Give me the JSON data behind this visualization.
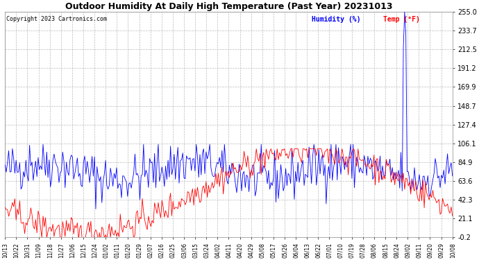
{
  "title": "Outdoor Humidity At Daily High Temperature (Past Year) 20231013",
  "copyright": "Copyright 2023 Cartronics.com",
  "legend_humidity": "Humidity (%)",
  "legend_temp": "Temp (°F)",
  "humidity_color": "#0000ff",
  "temp_color": "#ff0000",
  "background_color": "#ffffff",
  "plot_bg_color": "#ffffff",
  "grid_color": "#aaaaaa",
  "text_color": "#000000",
  "title_color": "#000000",
  "ymin": -0.2,
  "ymax": 255.0,
  "yticks": [
    255.0,
    233.7,
    212.5,
    191.2,
    169.9,
    148.7,
    127.4,
    106.1,
    84.9,
    63.6,
    42.3,
    21.1,
    -0.2
  ],
  "xtick_labels": [
    "10/13",
    "10/22",
    "10/31",
    "11/09",
    "11/18",
    "11/27",
    "12/06",
    "12/15",
    "12/24",
    "01/02",
    "01/11",
    "01/20",
    "01/29",
    "02/07",
    "02/16",
    "02/25",
    "03/06",
    "03/15",
    "03/24",
    "04/02",
    "04/11",
    "04/20",
    "04/29",
    "05/08",
    "05/17",
    "05/26",
    "06/04",
    "06/13",
    "06/22",
    "07/01",
    "07/10",
    "07/19",
    "07/28",
    "08/06",
    "08/15",
    "08/24",
    "09/02",
    "09/11",
    "09/20",
    "09/29",
    "10/08"
  ],
  "n_points": 366,
  "humidity_seed": 42,
  "spike_indices": [
    325,
    326,
    327
  ],
  "spike_values": [
    215,
    255,
    230
  ]
}
